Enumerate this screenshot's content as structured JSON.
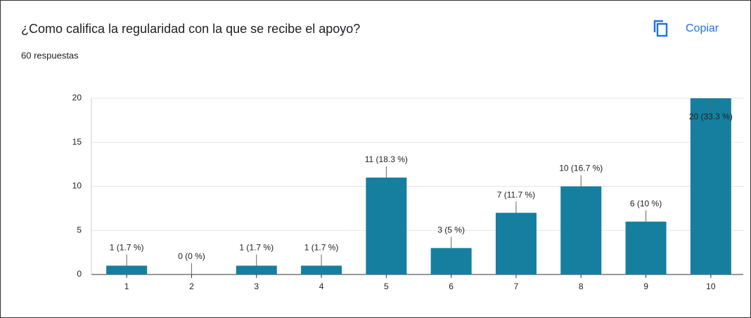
{
  "chart_data": {
    "type": "bar",
    "title": "¿Como califica la regularidad con la que se recibe el apoyo?",
    "subtitle": "60 respuestas",
    "button": "Copiar",
    "categories": [
      "1",
      "2",
      "3",
      "4",
      "5",
      "6",
      "7",
      "8",
      "9",
      "10"
    ],
    "values": [
      1,
      0,
      1,
      1,
      11,
      3,
      7,
      10,
      6,
      20
    ],
    "value_labels": [
      "1 (1.7 %)",
      "0 (0 %)",
      "1 (1.7 %)",
      "1 (1.7 %)",
      "11 (18.3 %)",
      "3 (5 %)",
      "7 (11.7 %)",
      "10 (16.7 %)",
      "6 (10 %)",
      "20 (33.3 %)"
    ],
    "color": "#167f9f",
    "ylim": [
      0,
      20
    ],
    "yticks": [
      0,
      5,
      10,
      15,
      20
    ],
    "grid": true
  }
}
